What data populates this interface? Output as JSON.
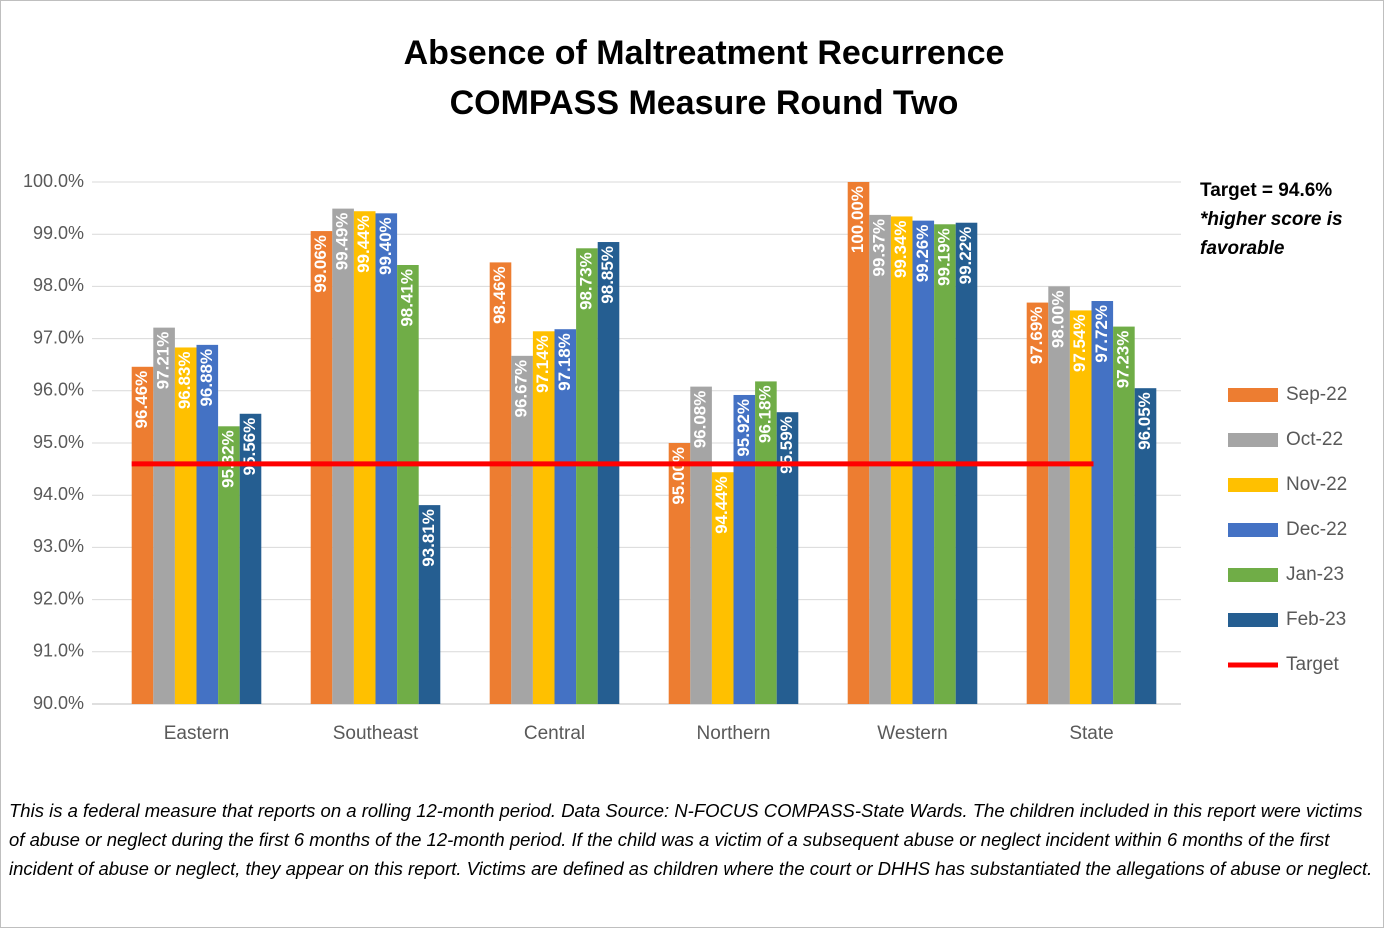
{
  "chart_data": {
    "type": "bar",
    "title": "Absence of Maltreatment Recurrence",
    "subtitle": "COMPASS Measure Round Two",
    "categories": [
      "Eastern",
      "Southeast",
      "Central",
      "Northern",
      "Western",
      "State"
    ],
    "series": [
      {
        "name": "Sep-22",
        "color": "#ed7d31",
        "values": [
          96.46,
          99.06,
          98.46,
          95.0,
          100.0,
          97.69
        ],
        "value_labels": [
          "96.46%",
          "99.06%",
          "98.46%",
          "95.00%",
          "100.00%",
          "97.69%"
        ]
      },
      {
        "name": "Oct-22",
        "color": "#a5a5a5",
        "values": [
          97.21,
          99.49,
          96.67,
          96.08,
          99.37,
          98.0
        ],
        "value_labels": [
          "97.21%",
          "99.49%",
          "96.67%",
          "96.08%",
          "99.37%",
          "98.00%"
        ]
      },
      {
        "name": "Nov-22",
        "color": "#ffc000",
        "values": [
          96.83,
          99.44,
          97.14,
          94.44,
          99.34,
          97.54
        ],
        "value_labels": [
          "96.83%",
          "99.44%",
          "97.14%",
          "94.44%",
          "99.34%",
          "97.54%"
        ]
      },
      {
        "name": "Dec-22",
        "color": "#4472c4",
        "values": [
          96.88,
          99.4,
          97.18,
          95.92,
          99.26,
          97.72
        ],
        "value_labels": [
          "96.88%",
          "99.40%",
          "97.18%",
          "95.92%",
          "99.26%",
          "97.72%"
        ]
      },
      {
        "name": "Jan-23",
        "color": "#70ad47",
        "values": [
          95.32,
          98.41,
          98.73,
          96.18,
          99.19,
          97.23
        ],
        "value_labels": [
          "95.32%",
          "98.41%",
          "98.73%",
          "96.18%",
          "99.19%",
          "97.23%"
        ]
      },
      {
        "name": "Feb-23",
        "color": "#255e91",
        "values": [
          95.56,
          93.81,
          98.85,
          95.59,
          99.22,
          96.05
        ],
        "value_labels": [
          "95.56%",
          "93.81%",
          "98.85%",
          "95.59%",
          "99.22%",
          "96.05%"
        ]
      }
    ],
    "target": {
      "name": "Target",
      "value": 94.6,
      "color": "#ff0000"
    },
    "annotation": "Target = 94.6%",
    "note": "*higher score is favorable",
    "ylim": [
      90,
      100
    ],
    "yticks": [
      {
        "value": 90,
        "label": "90.0%"
      },
      {
        "value": 91,
        "label": "91.0%"
      },
      {
        "value": 92,
        "label": "92.0%"
      },
      {
        "value": 93,
        "label": "93.0%"
      },
      {
        "value": 94,
        "label": "94.0%"
      },
      {
        "value": 95,
        "label": "95.0%"
      },
      {
        "value": 96,
        "label": "96.0%"
      },
      {
        "value": 97,
        "label": "97.0%"
      },
      {
        "value": 98,
        "label": "98.0%"
      },
      {
        "value": 99,
        "label": "99.0%"
      },
      {
        "value": 100,
        "label": "100.0%"
      }
    ],
    "grid": true,
    "footnote": "This is a federal measure that reports on a rolling 12-month period.  Data Source: N-FOCUS COMPASS-State Wards.  The children included in this report were victims of  abuse or neglect during the first 6 months of the 12-month period.  If the child was a victim of a subsequent abuse or neglect incident within 6 months of the first incident of abuse or neglect, they appear on this report.  Victims are defined as children where the court or DHHS has substantiated the allegations of abuse or neglect."
  }
}
